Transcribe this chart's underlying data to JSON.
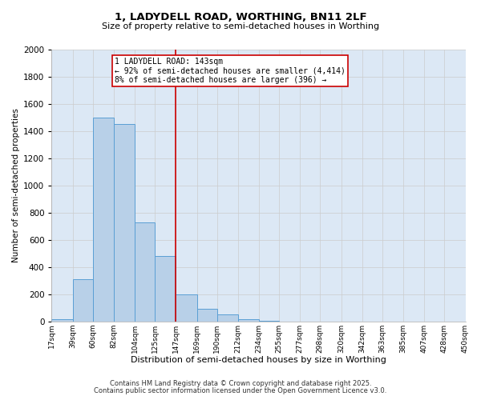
{
  "title_line1": "1, LADYDELL ROAD, WORTHING, BN11 2LF",
  "title_line2": "Size of property relative to semi-detached houses in Worthing",
  "xlabel": "Distribution of semi-detached houses by size in Worthing",
  "ylabel": "Number of semi-detached properties",
  "bin_labels": [
    "17sqm",
    "39sqm",
    "60sqm",
    "82sqm",
    "104sqm",
    "125sqm",
    "147sqm",
    "169sqm",
    "190sqm",
    "212sqm",
    "234sqm",
    "255sqm",
    "277sqm",
    "298sqm",
    "320sqm",
    "342sqm",
    "363sqm",
    "385sqm",
    "407sqm",
    "428sqm",
    "450sqm"
  ],
  "bin_edges": [
    17,
    39,
    60,
    82,
    104,
    125,
    147,
    169,
    190,
    212,
    234,
    255,
    277,
    298,
    320,
    342,
    363,
    385,
    407,
    428,
    450
  ],
  "bar_heights": [
    15,
    310,
    1500,
    1450,
    725,
    480,
    200,
    90,
    50,
    15,
    5,
    0,
    0,
    0,
    0,
    0,
    0,
    0,
    0,
    0
  ],
  "bar_color": "#b8d0e8",
  "bar_edge_color": "#5a9fd4",
  "vline_x": 147,
  "vline_color": "#cc0000",
  "annotation_text": "1 LADYDELL ROAD: 143sqm\n← 92% of semi-detached houses are smaller (4,414)\n8% of semi-detached houses are larger (396) →",
  "annotation_box_color": "#ffffff",
  "annotation_box_edge": "#cc0000",
  "ylim": [
    0,
    2000
  ],
  "yticks": [
    0,
    200,
    400,
    600,
    800,
    1000,
    1200,
    1400,
    1600,
    1800,
    2000
  ],
  "grid_color": "#cccccc",
  "plot_bg_color": "#dce8f5",
  "fig_bg_color": "#ffffff",
  "footer_line1": "Contains HM Land Registry data © Crown copyright and database right 2025.",
  "footer_line2": "Contains public sector information licensed under the Open Government Licence v3.0."
}
